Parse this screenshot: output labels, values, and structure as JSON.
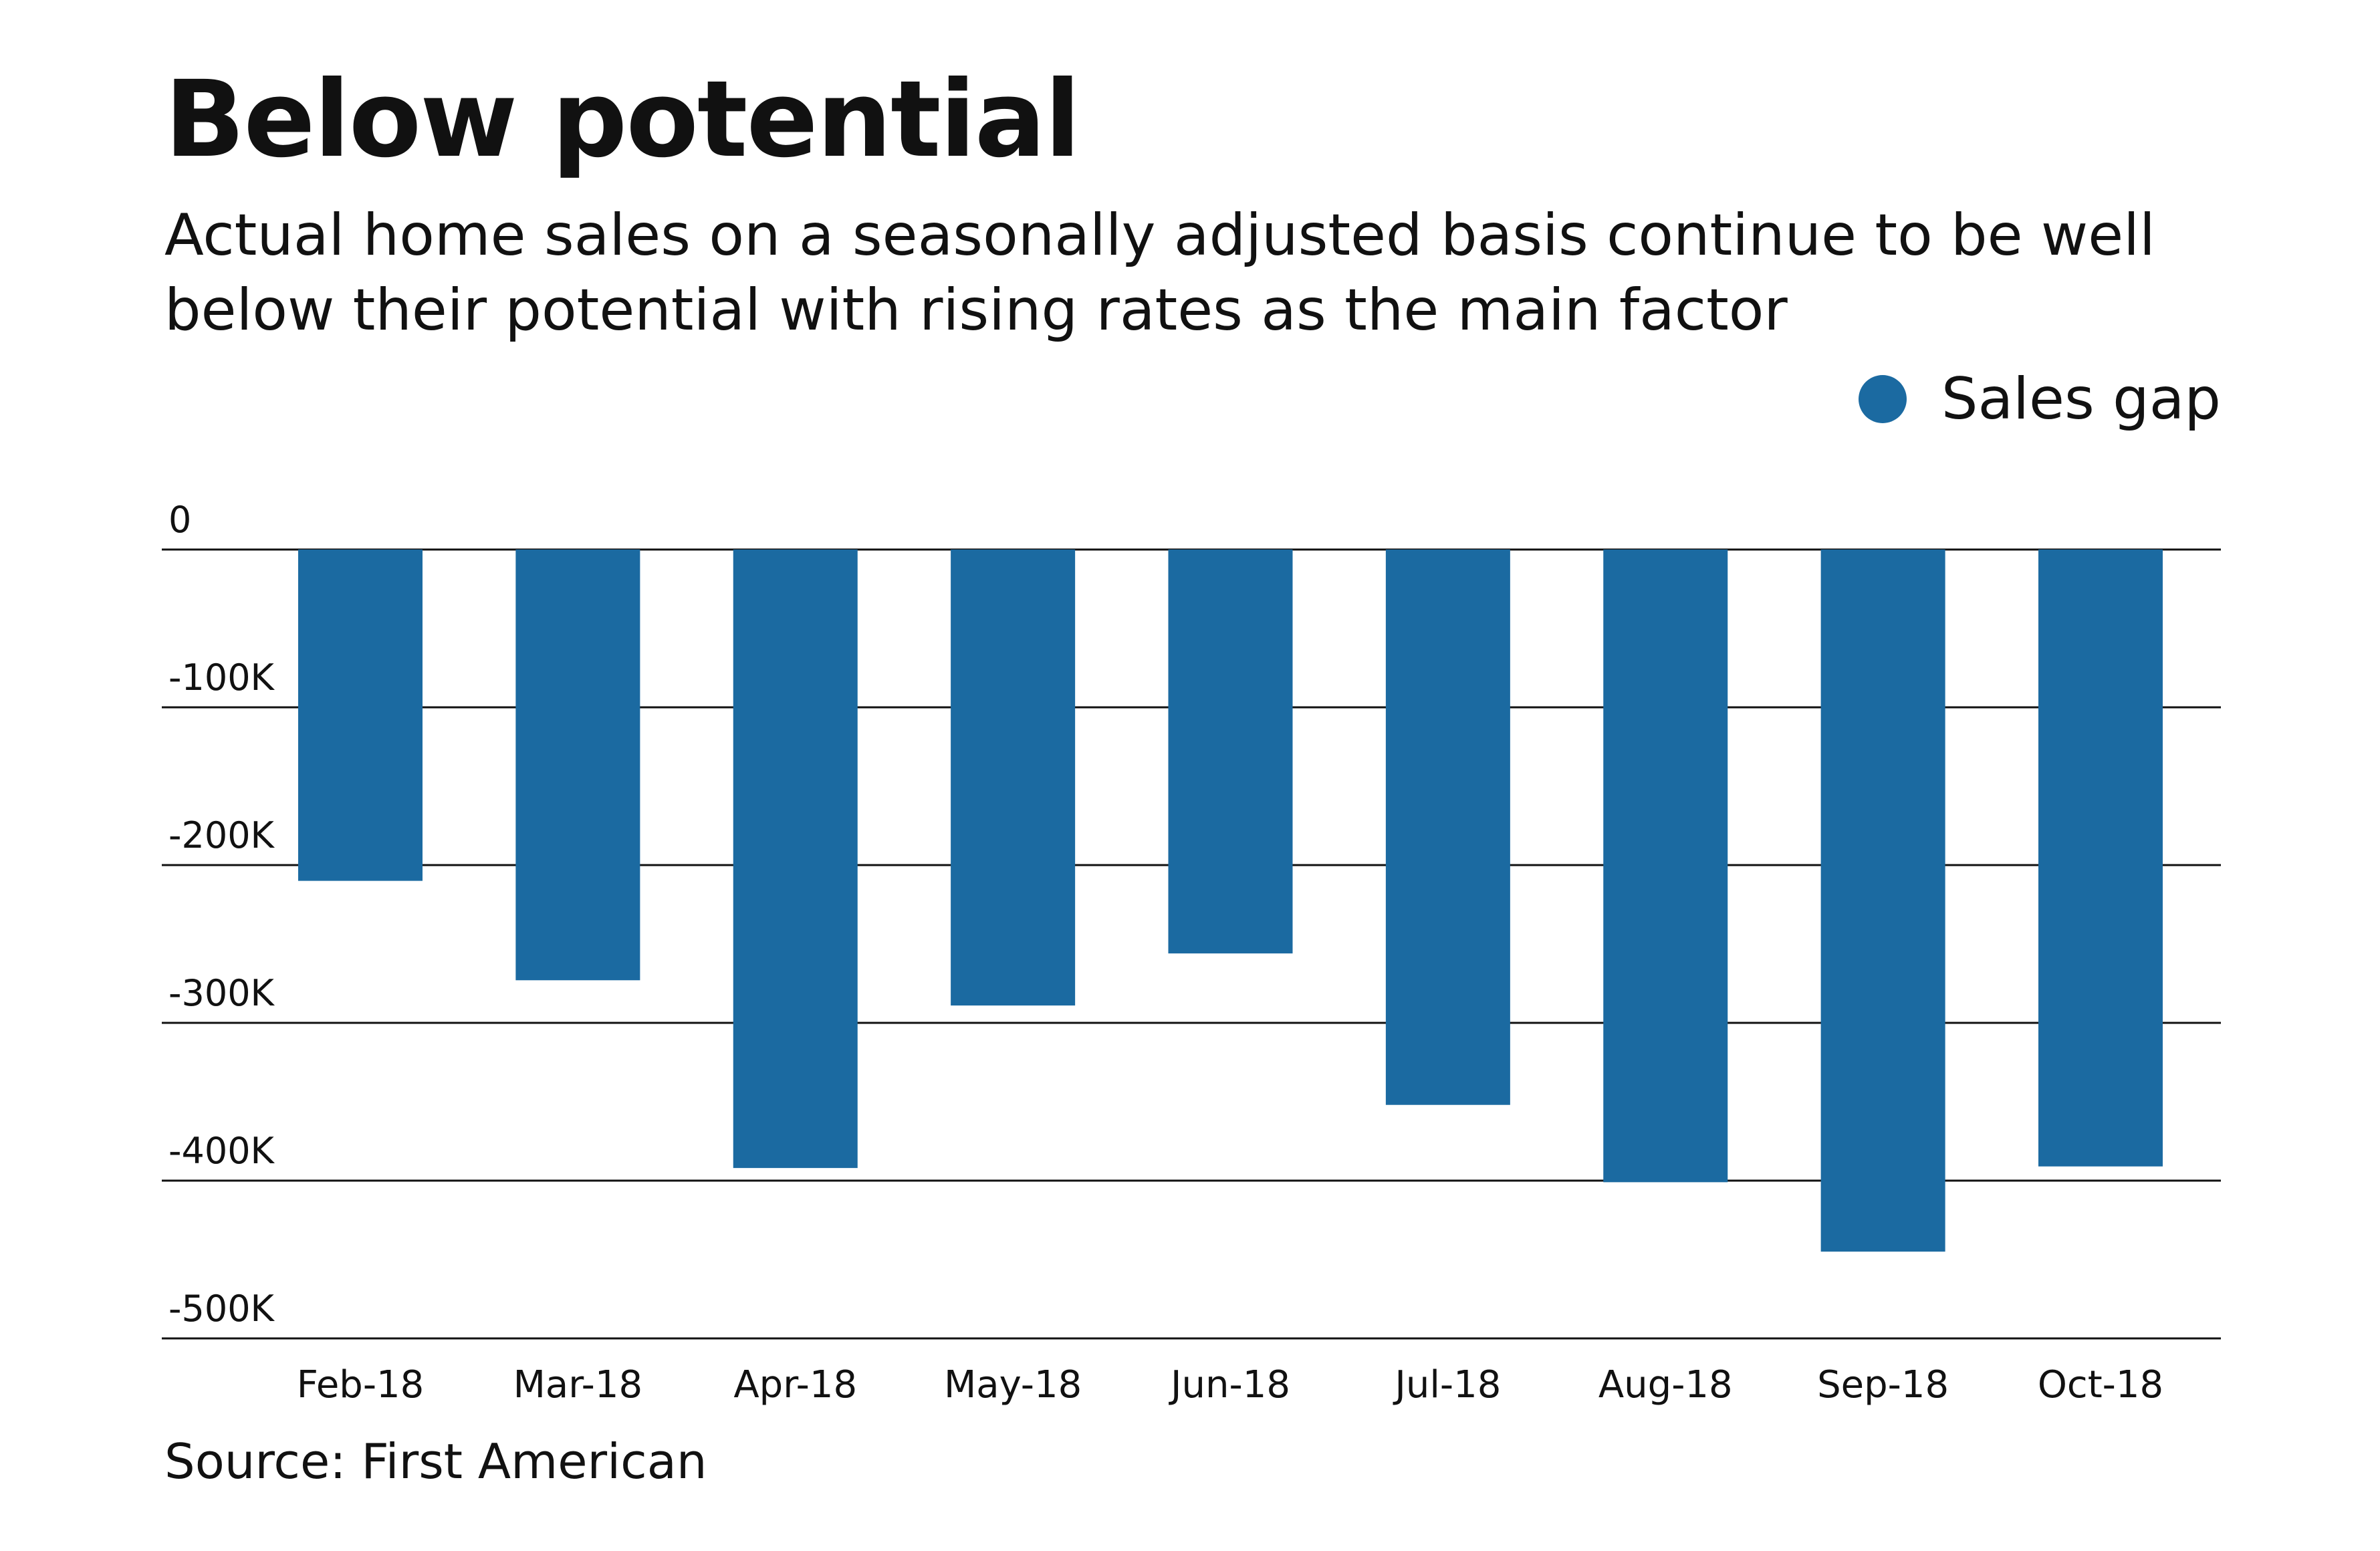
{
  "header": {
    "title": "Below potential",
    "subtitle": "Actual home sales on a seasonally adjusted basis continue to be well below their potential with rising rates as the main factor"
  },
  "legend": {
    "label": "Sales gap",
    "color": "#1b6aa1"
  },
  "footer": {
    "source": "Source: First American"
  },
  "chart_data": {
    "type": "bar",
    "categories": [
      "Feb-18",
      "Mar-18",
      "Apr-18",
      "May-18",
      "Jun-18",
      "Jul-18",
      "Aug-18",
      "Sep-18",
      "Oct-18"
    ],
    "series": [
      {
        "name": "Sales gap",
        "values": [
          -210000,
          -273000,
          -392000,
          -289000,
          -256000,
          -352000,
          -401000,
          -445000,
          -391000
        ]
      }
    ],
    "yticks": [
      0,
      -100000,
      -200000,
      -300000,
      -400000,
      -500000
    ],
    "ytick_labels": [
      "0",
      "-100K",
      "-200K",
      "-300K",
      "-400K",
      "-500K"
    ],
    "ylim": [
      -500000,
      0
    ],
    "grid": true,
    "legend_position": "top-right",
    "bar_color": "#1b6aa1"
  }
}
